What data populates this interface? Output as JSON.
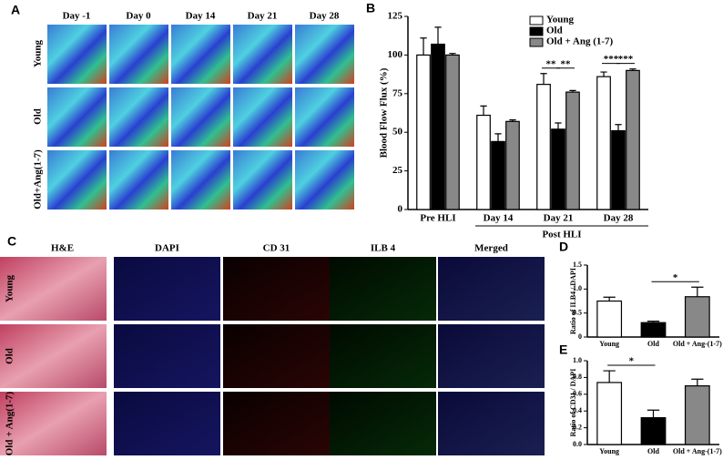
{
  "panel_a": {
    "label": "A",
    "columns": [
      "Day -1",
      "Day 0",
      "Day 14",
      "Day 21",
      "Day 28"
    ],
    "rows": [
      "Young",
      "Old",
      "Old+Ang(1-7)"
    ]
  },
  "panel_c": {
    "label": "C",
    "columns": [
      "H&E",
      "DAPI",
      "CD 31",
      "ILB 4",
      "Merged"
    ],
    "rows": [
      "Young",
      "Old",
      "Old + Ang(1-7)"
    ]
  },
  "chart_data": [
    {
      "type": "bar",
      "label": "B",
      "ylabel": "Blood Flow Flux (%)",
      "categories": [
        "Pre HLI",
        "Day 14",
        "Day 21",
        "Day 28"
      ],
      "group_label": {
        "text": "Post HLI",
        "categories": [
          1,
          3
        ]
      },
      "series": [
        {
          "name": "Young",
          "color": "#ffffff",
          "values": [
            100,
            61,
            81,
            86
          ],
          "error": [
            11,
            6,
            7,
            3
          ]
        },
        {
          "name": "Old",
          "color": "#000000",
          "values": [
            107,
            44,
            52,
            51
          ],
          "error": [
            11,
            5,
            4,
            4
          ]
        },
        {
          "name": "Old + Ang (1-7)",
          "color": "#888888",
          "values": [
            100,
            57,
            76,
            90
          ],
          "error": [
            1,
            1,
            1,
            1
          ]
        }
      ],
      "ylim": [
        0,
        125
      ],
      "yticks": [
        0,
        25,
        50,
        75,
        100,
        125
      ],
      "legend": "top-right",
      "annotations": [
        {
          "text": "**",
          "category": 2,
          "bars": [
            0,
            1
          ]
        },
        {
          "text": "**",
          "category": 2,
          "bars": [
            1,
            2
          ]
        },
        {
          "text": "***",
          "category": 3,
          "bars": [
            0,
            1
          ]
        },
        {
          "text": "***",
          "category": 3,
          "bars": [
            1,
            2
          ]
        }
      ]
    },
    {
      "type": "bar",
      "label": "D",
      "ylabel": "Ratio of ILB4 / DAPI",
      "categories": [
        "Young",
        "Old",
        "Old + Ang-(1-7)"
      ],
      "values": [
        0.75,
        0.3,
        0.84
      ],
      "error": [
        0.08,
        0.03,
        0.2
      ],
      "colors": [
        "#ffffff",
        "#000000",
        "#888888"
      ],
      "ylim": [
        0,
        1.5
      ],
      "yticks": [
        0,
        0.5,
        {
          "value": 1,
          "label": "1.0"
        },
        1.5
      ],
      "annotations": [
        {
          "text": "*",
          "bars": [
            1,
            2
          ]
        }
      ]
    },
    {
      "type": "bar",
      "label": "E",
      "ylabel": "Ratio of CD31 / DAPI",
      "categories": [
        "Young",
        "Old",
        "Old + Ang-(1-7)"
      ],
      "values": [
        0.74,
        0.32,
        0.7
      ],
      "error": [
        0.14,
        0.09,
        0.08
      ],
      "colors": [
        "#ffffff",
        "#000000",
        "#888888"
      ],
      "ylim": [
        0,
        1
      ],
      "yticks": [
        {
          "value": 0,
          "label": "0.0"
        },
        0.2,
        0.4,
        0.6,
        0.8,
        {
          "value": 1,
          "label": "1.0"
        }
      ],
      "annotations": [
        {
          "text": "*",
          "bars": [
            0,
            1
          ]
        }
      ]
    }
  ]
}
